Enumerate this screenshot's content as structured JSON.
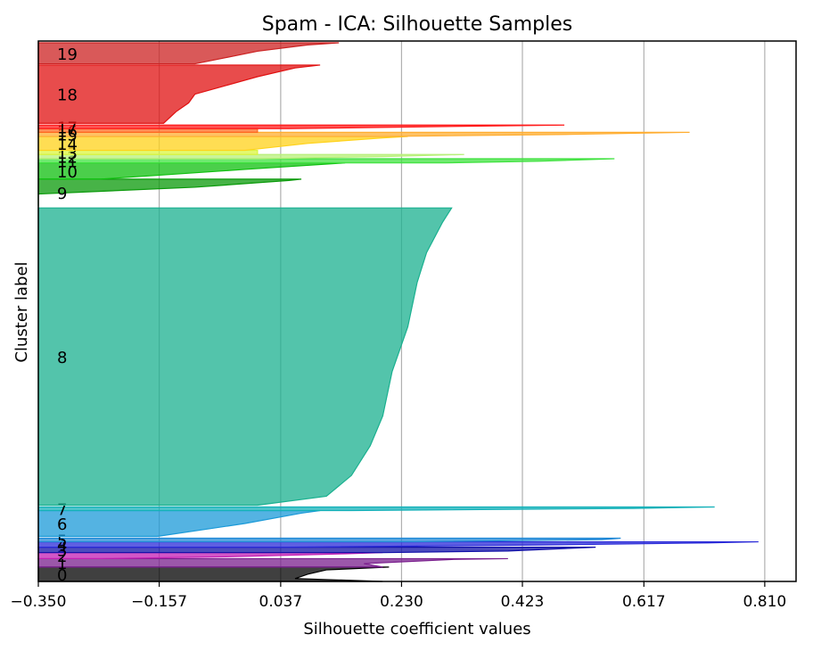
{
  "chart_data": {
    "type": "area",
    "title": "Spam - ICA: Silhouette Samples",
    "xlabel": "Silhouette coefficient values",
    "ylabel": "Cluster label",
    "xlim": [
      -0.35,
      0.86
    ],
    "ylim": [
      0,
      900
    ],
    "xticks": [
      -0.35,
      -0.157,
      0.037,
      0.23,
      0.423,
      0.617,
      0.81
    ],
    "xtick_labels": [
      "−0.350",
      "−0.157",
      "0.037",
      "0.230",
      "0.423",
      "0.617",
      "0.810"
    ],
    "grid": "vertical",
    "clusters": [
      {
        "label": "0",
        "y_lower": 0,
        "y_upper": 24,
        "color": "#000000",
        "profile": [
          [
            0,
            0.2
          ],
          [
            0.2,
            0.06
          ],
          [
            0.5,
            0.08
          ],
          [
            0.8,
            0.11
          ],
          [
            1,
            0.21
          ]
        ]
      },
      {
        "label": "1",
        "y_lower": 24,
        "y_upper": 38,
        "color": "#7a1f8e",
        "profile": [
          [
            0,
            0.2
          ],
          [
            0.4,
            0.17
          ],
          [
            0.9,
            0.31
          ],
          [
            1,
            0.4
          ]
        ]
      },
      {
        "label": "2",
        "y_lower": 38,
        "y_upper": 48,
        "color": "#c31fb4",
        "profile": [
          [
            0,
            -0.25
          ],
          [
            0.3,
            -0.05
          ],
          [
            0.8,
            0.14
          ],
          [
            1,
            0.2
          ]
        ]
      },
      {
        "label": "3",
        "y_lower": 48,
        "y_upper": 57,
        "color": "#1010a8",
        "profile": [
          [
            0,
            0.2
          ],
          [
            0.3,
            0.4
          ],
          [
            1,
            0.54
          ]
        ]
      },
      {
        "label": "4",
        "y_lower": 57,
        "y_upper": 66,
        "color": "#2a2ad8",
        "profile": [
          [
            0,
            0.05
          ],
          [
            0.4,
            0.45
          ],
          [
            0.8,
            0.72
          ],
          [
            1,
            0.8
          ]
        ]
      },
      {
        "label": "5",
        "y_lower": 66,
        "y_upper": 72,
        "color": "#1e88d6",
        "profile": [
          [
            0,
            0.25
          ],
          [
            0.6,
            0.55
          ],
          [
            1,
            0.58
          ]
        ]
      },
      {
        "label": "6",
        "y_lower": 75,
        "y_upper": 118,
        "color": "#1b9ad8",
        "profile": [
          [
            0,
            -0.16
          ],
          [
            0.5,
            -0.02
          ],
          [
            0.9,
            0.07
          ],
          [
            1,
            0.1
          ]
        ]
      },
      {
        "label": "7",
        "y_lower": 118,
        "y_upper": 124,
        "color": "#12b0b8",
        "profile": [
          [
            0,
            0.15
          ],
          [
            0.6,
            0.6
          ],
          [
            1,
            0.73
          ]
        ]
      },
      {
        "label": "8",
        "y_lower": 127,
        "y_upper": 622,
        "color": "#19b08f",
        "profile": [
          [
            0,
            0.0
          ],
          [
            0.03,
            0.11
          ],
          [
            0.1,
            0.15
          ],
          [
            0.2,
            0.18
          ],
          [
            0.3,
            0.2
          ],
          [
            0.45,
            0.215
          ],
          [
            0.6,
            0.24
          ],
          [
            0.75,
            0.255
          ],
          [
            0.85,
            0.27
          ],
          [
            0.95,
            0.295
          ],
          [
            1,
            0.31
          ]
        ]
      },
      {
        "label": "9",
        "y_lower": 625,
        "y_upper": 670,
        "color": "#0a9a0a",
        "profile": [
          [
            0,
            -0.35
          ],
          [
            0.45,
            -0.35
          ],
          [
            0.7,
            -0.1
          ],
          [
            0.95,
            0.05
          ],
          [
            1,
            0.07
          ]
        ]
      },
      {
        "label": "10",
        "y_lower": 670,
        "y_upper": 697,
        "color": "#0fbf0f",
        "profile": [
          [
            0,
            -0.25
          ],
          [
            0.6,
            -0.02
          ],
          [
            1,
            0.14
          ]
        ]
      },
      {
        "label": "11",
        "y_lower": 697,
        "y_upper": 704,
        "color": "#3fe23f",
        "profile": [
          [
            0,
            0.3
          ],
          [
            0.4,
            0.45
          ],
          [
            1,
            0.57
          ]
        ]
      },
      {
        "label": "12",
        "y_lower": 704,
        "y_upper": 711,
        "color": "#b8f07a",
        "profile": [
          [
            0,
            0.0
          ],
          [
            0.5,
            0.2
          ],
          [
            1,
            0.33
          ]
        ]
      },
      {
        "label": "13",
        "y_lower": 711,
        "y_upper": 718,
        "color": "#d9f542",
        "profile": [
          [
            0,
            0.0
          ],
          [
            1,
            0.0
          ]
        ]
      },
      {
        "label": "14",
        "y_lower": 718,
        "y_upper": 741,
        "color": "#ffd21a",
        "profile": [
          [
            0,
            -0.02
          ],
          [
            0.5,
            0.08
          ],
          [
            0.9,
            0.2
          ],
          [
            1,
            0.24
          ]
        ]
      },
      {
        "label": "15",
        "y_lower": 741,
        "y_upper": 748,
        "color": "#ffad30",
        "profile": [
          [
            0,
            0.2
          ],
          [
            0.5,
            0.5
          ],
          [
            1,
            0.69
          ]
        ]
      },
      {
        "label": "16",
        "y_lower": 748,
        "y_upper": 754,
        "color": "#ff6a20",
        "profile": [
          [
            0,
            0.0
          ],
          [
            1,
            0.0
          ]
        ]
      },
      {
        "label": "17",
        "y_lower": 754,
        "y_upper": 760,
        "color": "#ff1a1a",
        "profile": [
          [
            0,
            0.05
          ],
          [
            0.6,
            0.3
          ],
          [
            1,
            0.49
          ]
        ]
      },
      {
        "label": "18",
        "y_lower": 763,
        "y_upper": 860,
        "color": "#e01010",
        "profile": [
          [
            0,
            -0.15
          ],
          [
            0.2,
            -0.13
          ],
          [
            0.35,
            -0.11
          ],
          [
            0.5,
            -0.1
          ],
          [
            0.65,
            -0.05
          ],
          [
            0.8,
            0.0
          ],
          [
            0.95,
            0.06
          ],
          [
            1,
            0.1
          ]
        ]
      },
      {
        "label": "19",
        "y_lower": 862,
        "y_upper": 897,
        "color": "#cc2222",
        "profile": [
          [
            0,
            -0.1
          ],
          [
            0.6,
            0.0
          ],
          [
            0.9,
            0.08
          ],
          [
            1,
            0.13
          ]
        ]
      }
    ]
  }
}
